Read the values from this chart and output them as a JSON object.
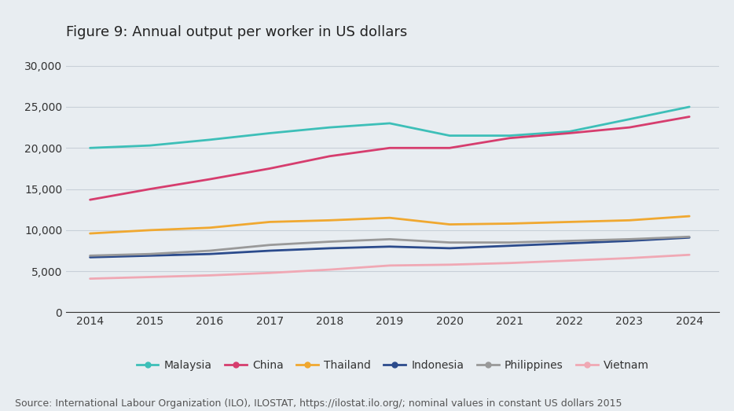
{
  "title": "Figure 9: Annual output per worker in US dollars",
  "source": "Source: International Labour Organization (ILO), ILOSTAT, https://ilostat.ilo.org/; nominal values in constant US dollars 2015",
  "years": [
    2014,
    2015,
    2016,
    2017,
    2018,
    2019,
    2020,
    2021,
    2022,
    2023,
    2024
  ],
  "series": {
    "Malaysia": [
      20000,
      20300,
      21000,
      21800,
      22500,
      23000,
      21500,
      21500,
      22000,
      23500,
      25000
    ],
    "China": [
      13700,
      15000,
      16200,
      17500,
      19000,
      20000,
      20000,
      21200,
      21800,
      22500,
      23800
    ],
    "Thailand": [
      9600,
      10000,
      10300,
      11000,
      11200,
      11500,
      10700,
      10800,
      11000,
      11200,
      11700
    ],
    "Indonesia": [
      6700,
      6900,
      7100,
      7500,
      7800,
      8000,
      7800,
      8100,
      8400,
      8700,
      9100
    ],
    "Philippines": [
      6900,
      7100,
      7500,
      8200,
      8600,
      8900,
      8500,
      8500,
      8700,
      8900,
      9200
    ],
    "Vietnam": [
      4100,
      4300,
      4500,
      4800,
      5200,
      5700,
      5800,
      6000,
      6300,
      6600,
      7000
    ]
  },
  "colors": {
    "Malaysia": "#3dbfb8",
    "China": "#d63d6e",
    "Thailand": "#f0a830",
    "Indonesia": "#2b4b8c",
    "Philippines": "#999999",
    "Vietnam": "#f0a8b4"
  },
  "ylim": [
    0,
    32000
  ],
  "yticks": [
    0,
    5000,
    10000,
    15000,
    20000,
    25000,
    30000
  ],
  "background_color": "#e8edf1",
  "plot_bg_color": "#e8edf1",
  "grid_color": "#c8d0d8",
  "title_fontsize": 13,
  "legend_fontsize": 10,
  "tick_fontsize": 10,
  "source_fontsize": 9,
  "linewidth": 2.0
}
